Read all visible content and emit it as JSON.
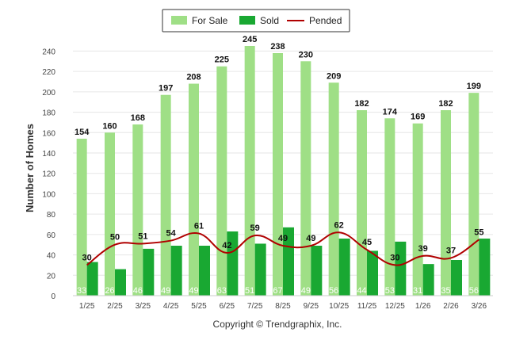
{
  "chart_data": {
    "type": "bar",
    "ylabel": "Number of Homes",
    "ylim": [
      0,
      245
    ],
    "yticks": [
      0,
      20,
      40,
      60,
      80,
      100,
      120,
      140,
      160,
      180,
      200,
      220,
      240
    ],
    "grid": true,
    "legend_position": "top-center",
    "categories": [
      "1/25",
      "2/25",
      "3/25",
      "4/25",
      "5/25",
      "6/25",
      "7/25",
      "8/25",
      "9/25",
      "10/25",
      "11/25",
      "12/25",
      "1/26",
      "2/26",
      "3/26"
    ],
    "series": [
      {
        "name": "For Sale",
        "kind": "bar",
        "color": "#9fdf86",
        "values": [
          154,
          160,
          168,
          197,
          208,
          225,
          245,
          238,
          230,
          209,
          182,
          174,
          169,
          182,
          199
        ]
      },
      {
        "name": "Sold",
        "kind": "bar",
        "color": "#19a832",
        "values": [
          33,
          26,
          46,
          49,
          49,
          63,
          51,
          67,
          49,
          56,
          44,
          53,
          31,
          35,
          56
        ]
      },
      {
        "name": "Pended",
        "kind": "line",
        "color": "#b00000",
        "values": [
          30,
          50,
          51,
          54,
          61,
          42,
          59,
          49,
          49,
          62,
          45,
          30,
          39,
          37,
          55
        ]
      }
    ]
  },
  "footer": {
    "copyright": "Copyright © Trendgraphix, Inc."
  }
}
